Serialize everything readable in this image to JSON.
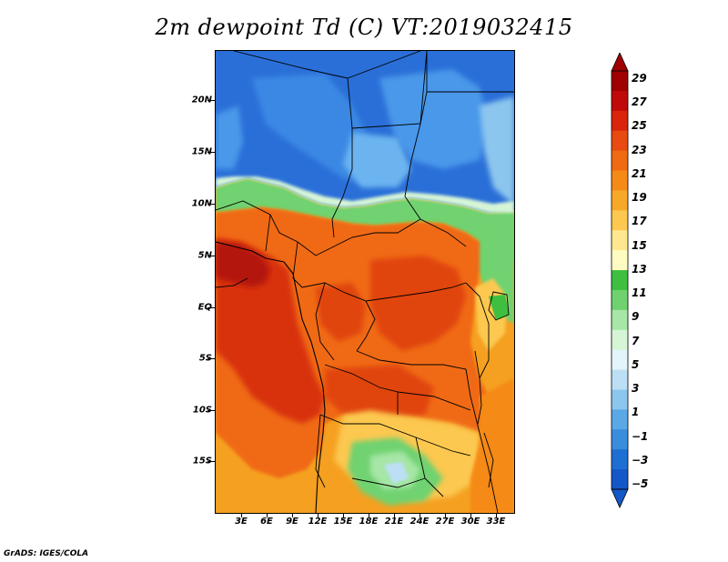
{
  "title": "2m dewpoint Td (C) VT:2019032415",
  "credit": "GrADS: IGES/COLA",
  "lat_labels": [
    "20N",
    "15N",
    "10N",
    "5N",
    "EQ",
    "5S",
    "10S",
    "15S"
  ],
  "lon_labels": [
    "3E",
    "6E",
    "9E",
    "12E",
    "15E",
    "18E",
    "21E",
    "24E",
    "27E",
    "30E",
    "33E"
  ],
  "colorbar": {
    "labels": [
      "29",
      "27",
      "25",
      "23",
      "21",
      "19",
      "17",
      "15",
      "13",
      "11",
      "9",
      "7",
      "5",
      "3",
      "1",
      "-1",
      "-3",
      "-5"
    ],
    "colors": [
      "#a00000",
      "#c00a0a",
      "#d8250c",
      "#e84a10",
      "#f06a12",
      "#f58a18",
      "#f8a828",
      "#fcc850",
      "#fde890",
      "#fefcc0",
      "#3fbf3f",
      "#6fd26f",
      "#a6e6a6",
      "#d6f5d6",
      "#e3f4fb",
      "#bcdff5",
      "#8cc6ee",
      "#5aa8e6",
      "#3a8cdc",
      "#1e6fd4",
      "#1458c8"
    ]
  },
  "colors": {
    "desert_blue": "#3a82e0",
    "sahara_light": "#5aa5ea",
    "green_band": "#7cd67c",
    "orange_core": "#f06a12",
    "deep_red": "#d83216",
    "southern_orange": "#f5a020"
  }
}
